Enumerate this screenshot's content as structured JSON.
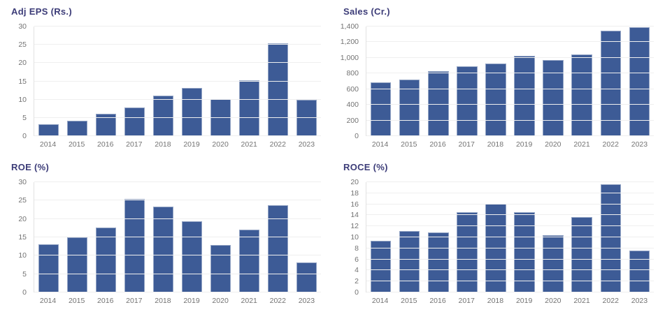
{
  "theme": {
    "background": "#ffffff",
    "bar_color": "#3d5b96",
    "title_color": "#3c3c78",
    "axis_label_color": "#737373",
    "gridline_color": "#efefef",
    "axis_line_color": "#e2e2e2"
  },
  "chart_data": [
    {
      "type": "bar",
      "title": "Adj EPS (Rs.)",
      "categories": [
        "2014",
        "2015",
        "2016",
        "2017",
        "2018",
        "2019",
        "2020",
        "2021",
        "2022",
        "2023"
      ],
      "values": [
        3.2,
        4.3,
        6.1,
        7.9,
        11.1,
        13.1,
        10.1,
        15.2,
        25.5,
        10.0
      ],
      "xlabel": "",
      "ylabel": "",
      "ylim": [
        0,
        30
      ],
      "ytick_step": 5,
      "grid": true,
      "legend": "none"
    },
    {
      "type": "bar",
      "title": "Sales (Cr.)",
      "categories": [
        "2014",
        "2015",
        "2016",
        "2017",
        "2018",
        "2019",
        "2020",
        "2021",
        "2022",
        "2023"
      ],
      "values": [
        690,
        725,
        825,
        888,
        926,
        1030,
        968,
        1042,
        1348,
        1393
      ],
      "xlabel": "",
      "ylabel": "",
      "ylim": [
        0,
        1400
      ],
      "ytick_step": 200,
      "grid": true,
      "legend": "none"
    },
    {
      "type": "bar",
      "title": "ROE (%)",
      "categories": [
        "2014",
        "2015",
        "2016",
        "2017",
        "2018",
        "2019",
        "2020",
        "2021",
        "2022",
        "2023"
      ],
      "values": [
        13.1,
        15.0,
        17.7,
        25.5,
        23.3,
        19.3,
        13.0,
        17.1,
        23.7,
        8.1
      ],
      "xlabel": "",
      "ylabel": "",
      "ylim": [
        0,
        30
      ],
      "ytick_step": 5,
      "grid": true,
      "legend": "none"
    },
    {
      "type": "bar",
      "title": "ROCE (%)",
      "categories": [
        "2014",
        "2015",
        "2016",
        "2017",
        "2018",
        "2019",
        "2020",
        "2021",
        "2022",
        "2023"
      ],
      "values": [
        9.4,
        11.2,
        10.9,
        14.6,
        16.1,
        14.5,
        10.4,
        13.7,
        19.6,
        7.6
      ],
      "xlabel": "",
      "ylabel": "",
      "ylim": [
        0,
        20
      ],
      "ytick_step": 2,
      "grid": true,
      "legend": "none"
    }
  ]
}
